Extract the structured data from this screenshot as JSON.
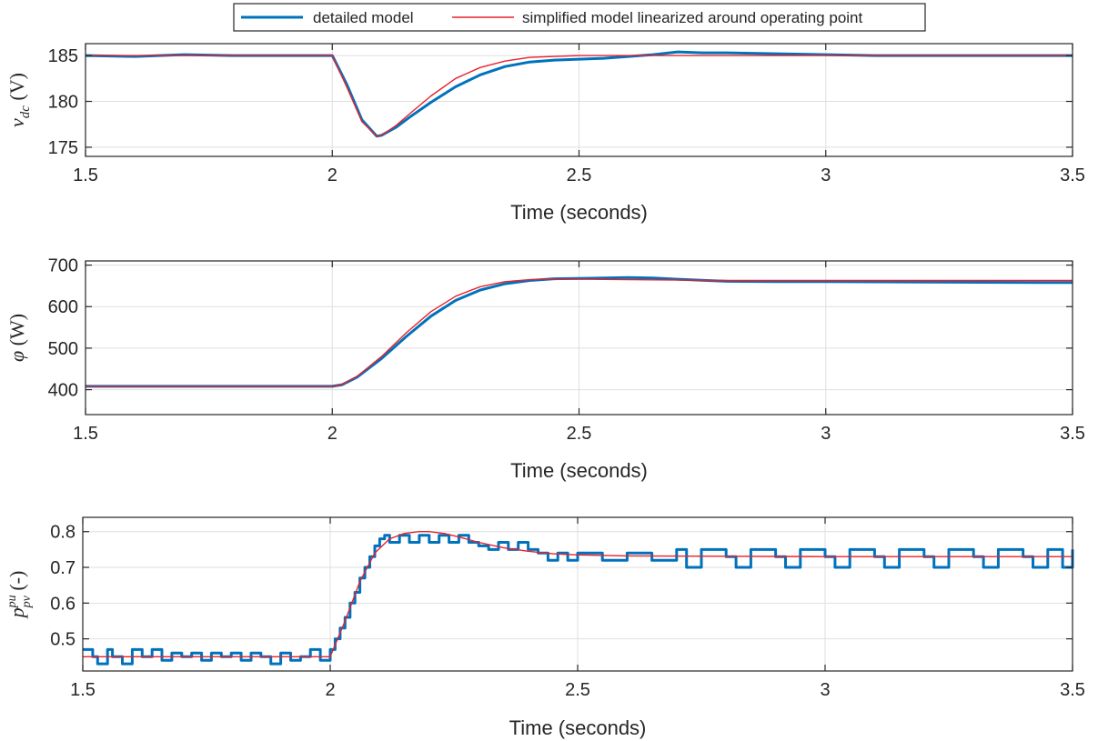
{
  "legend": {
    "entries": [
      {
        "label": "detailed model",
        "color": "#0072BD"
      },
      {
        "label": "simplified model linearized around operating point",
        "color": "#E8212B"
      }
    ]
  },
  "chart_data": [
    {
      "type": "line",
      "id": "vdc",
      "xlabel": "Time (seconds)",
      "ylabel": {
        "var": "v",
        "sub": "dc",
        "unit": "(V)"
      },
      "xlim": [
        1.5,
        3.5
      ],
      "ylim": [
        174,
        186.3
      ],
      "xticks": [
        1.5,
        2,
        2.5,
        3,
        3.5
      ],
      "xtick_labels": [
        "1.5",
        "2",
        "2.5",
        "3",
        "3.5"
      ],
      "yticks": [
        175,
        180,
        185
      ],
      "ytick_labels": [
        "175",
        "180",
        "185"
      ],
      "grid": true,
      "series": [
        {
          "name": "detailed model",
          "color": "#0072BD",
          "x": [
            1.5,
            1.6,
            1.7,
            1.8,
            1.9,
            1.99,
            2.0,
            2.03,
            2.06,
            2.09,
            2.1,
            2.13,
            2.16,
            2.2,
            2.25,
            2.3,
            2.35,
            2.4,
            2.45,
            2.5,
            2.55,
            2.6,
            2.65,
            2.7,
            2.75,
            2.8,
            2.9,
            3.0,
            3.1,
            3.2,
            3.3,
            3.4,
            3.5
          ],
          "y": [
            185,
            184.9,
            185.1,
            185,
            185,
            185,
            185,
            181.8,
            178.0,
            176.2,
            176.3,
            177.2,
            178.4,
            179.9,
            181.6,
            182.9,
            183.8,
            184.3,
            184.5,
            184.6,
            184.7,
            184.9,
            185.1,
            185.4,
            185.3,
            185.3,
            185.2,
            185.1,
            185,
            185,
            185,
            185,
            185
          ]
        },
        {
          "name": "simplified model linearized around operating point",
          "color": "#E8212B",
          "x": [
            1.5,
            1.6,
            1.7,
            1.8,
            1.9,
            2.0,
            2.03,
            2.06,
            2.09,
            2.1,
            2.13,
            2.16,
            2.2,
            2.25,
            2.3,
            2.35,
            2.4,
            2.45,
            2.5,
            2.6,
            2.8,
            3.0,
            3.2,
            3.5
          ],
          "y": [
            185,
            185,
            185,
            185,
            185,
            185,
            181.5,
            177.8,
            176.2,
            176.3,
            177.4,
            178.8,
            180.6,
            182.5,
            183.7,
            184.4,
            184.8,
            184.9,
            185,
            185,
            185,
            185,
            185,
            185
          ]
        }
      ]
    },
    {
      "type": "line",
      "id": "phi",
      "xlabel": "Time (seconds)",
      "ylabel": {
        "var": "φ",
        "sub": "",
        "unit": "(W)"
      },
      "xlim": [
        1.5,
        3.5
      ],
      "ylim": [
        340,
        710
      ],
      "xticks": [
        1.5,
        2,
        2.5,
        3,
        3.5
      ],
      "xtick_labels": [
        "1.5",
        "2",
        "2.5",
        "3",
        "3.5"
      ],
      "yticks": [
        400,
        500,
        600,
        700
      ],
      "ytick_labels": [
        "400",
        "500",
        "600",
        "700"
      ],
      "grid": true,
      "series": [
        {
          "name": "detailed model",
          "color": "#0072BD",
          "x": [
            1.5,
            1.6,
            1.7,
            1.8,
            1.9,
            2.0,
            2.02,
            2.05,
            2.1,
            2.15,
            2.2,
            2.25,
            2.3,
            2.35,
            2.4,
            2.45,
            2.5,
            2.55,
            2.6,
            2.65,
            2.7,
            2.8,
            2.9,
            3.0,
            3.2,
            3.5
          ],
          "y": [
            408,
            408,
            408,
            408,
            408,
            408,
            412,
            430,
            475,
            528,
            577,
            615,
            640,
            655,
            663,
            667,
            668,
            669,
            670,
            669,
            666,
            661,
            660,
            660,
            659,
            658
          ]
        },
        {
          "name": "simplified model linearized around operating point",
          "color": "#E8212B",
          "x": [
            1.5,
            1.6,
            1.7,
            1.8,
            1.9,
            2.0,
            2.02,
            2.05,
            2.1,
            2.15,
            2.2,
            2.25,
            2.3,
            2.35,
            2.4,
            2.45,
            2.5,
            2.6,
            2.8,
            3.0,
            3.2,
            3.5
          ],
          "y": [
            408,
            408,
            408,
            408,
            408,
            408,
            413,
            432,
            480,
            537,
            588,
            625,
            648,
            660,
            665,
            666,
            666,
            665,
            663,
            663,
            663,
            663
          ]
        }
      ]
    },
    {
      "type": "line",
      "id": "ppv",
      "xlabel": "Time (seconds)",
      "ylabel": {
        "var": "p",
        "sub": "pv",
        "sup": "pu",
        "unit": "(-)"
      },
      "xlim": [
        1.5,
        3.5
      ],
      "ylim": [
        0.41,
        0.84
      ],
      "xticks": [
        1.5,
        2,
        2.5,
        3,
        3.5
      ],
      "xtick_labels": [
        "1.5",
        "2",
        "2.5",
        "3",
        "3.5"
      ],
      "yticks": [
        0.5,
        0.6,
        0.7,
        0.8
      ],
      "ytick_labels": [
        "0.5",
        "0.6",
        "0.7",
        "0.8"
      ],
      "grid": true,
      "series": [
        {
          "name": "detailed model",
          "color": "#0072BD",
          "step": true,
          "x": [
            1.5,
            1.52,
            1.53,
            1.55,
            1.56,
            1.58,
            1.6,
            1.62,
            1.64,
            1.66,
            1.68,
            1.7,
            1.72,
            1.74,
            1.76,
            1.78,
            1.8,
            1.82,
            1.84,
            1.86,
            1.88,
            1.9,
            1.92,
            1.94,
            1.96,
            1.98,
            2.0,
            2.01,
            2.02,
            2.03,
            2.04,
            2.05,
            2.06,
            2.07,
            2.08,
            2.09,
            2.1,
            2.11,
            2.12,
            2.14,
            2.16,
            2.18,
            2.2,
            2.22,
            2.24,
            2.26,
            2.28,
            2.3,
            2.32,
            2.34,
            2.36,
            2.38,
            2.4,
            2.42,
            2.44,
            2.46,
            2.48,
            2.5,
            2.55,
            2.6,
            2.65,
            2.7,
            2.72,
            2.75,
            2.8,
            2.82,
            2.85,
            2.9,
            2.92,
            2.95,
            3.0,
            3.02,
            3.05,
            3.1,
            3.12,
            3.15,
            3.2,
            3.22,
            3.25,
            3.3,
            3.32,
            3.35,
            3.4,
            3.42,
            3.45,
            3.48,
            3.5
          ],
          "y": [
            0.47,
            0.45,
            0.43,
            0.47,
            0.45,
            0.43,
            0.47,
            0.45,
            0.47,
            0.44,
            0.46,
            0.45,
            0.46,
            0.44,
            0.46,
            0.45,
            0.46,
            0.44,
            0.46,
            0.45,
            0.43,
            0.46,
            0.44,
            0.45,
            0.47,
            0.44,
            0.47,
            0.5,
            0.53,
            0.56,
            0.6,
            0.63,
            0.67,
            0.7,
            0.73,
            0.76,
            0.78,
            0.79,
            0.77,
            0.79,
            0.77,
            0.79,
            0.77,
            0.79,
            0.77,
            0.79,
            0.77,
            0.76,
            0.75,
            0.77,
            0.75,
            0.77,
            0.75,
            0.74,
            0.72,
            0.74,
            0.72,
            0.74,
            0.72,
            0.74,
            0.72,
            0.75,
            0.7,
            0.75,
            0.73,
            0.7,
            0.75,
            0.73,
            0.7,
            0.75,
            0.73,
            0.7,
            0.75,
            0.73,
            0.7,
            0.75,
            0.73,
            0.7,
            0.75,
            0.73,
            0.7,
            0.75,
            0.73,
            0.7,
            0.75,
            0.7,
            0.75
          ]
        },
        {
          "name": "simplified model linearized around operating point",
          "color": "#E8212B",
          "x": [
            1.5,
            1.7,
            1.9,
            2.0,
            2.03,
            2.06,
            2.09,
            2.12,
            2.15,
            2.18,
            2.2,
            2.23,
            2.26,
            2.3,
            2.35,
            2.4,
            2.45,
            2.5,
            2.6,
            2.8,
            3.0,
            3.2,
            3.5
          ],
          "y": [
            0.45,
            0.45,
            0.45,
            0.45,
            0.55,
            0.66,
            0.74,
            0.78,
            0.795,
            0.8,
            0.8,
            0.795,
            0.785,
            0.77,
            0.755,
            0.745,
            0.738,
            0.735,
            0.732,
            0.731,
            0.73,
            0.73,
            0.73
          ]
        }
      ]
    }
  ]
}
